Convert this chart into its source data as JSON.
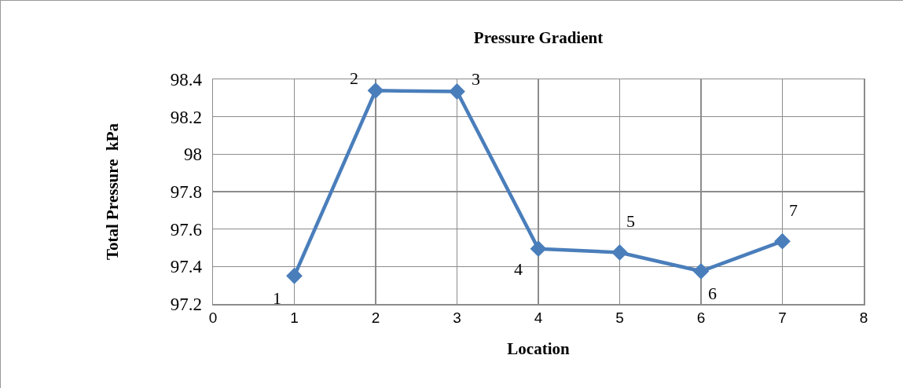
{
  "chart_data": {
    "type": "line",
    "title": "Pressure Gradient",
    "xlabel": "Location",
    "ylabel": "Total Pressure  kPa",
    "x": [
      1,
      2,
      3,
      4,
      5,
      6,
      7
    ],
    "series": [
      {
        "color": "#4a7ebb",
        "values": [
          97.35,
          98.34,
          98.335,
          97.495,
          97.475,
          97.375,
          97.535
        ]
      }
    ],
    "xlim": [
      0,
      8
    ],
    "xticks": [
      0,
      1,
      2,
      3,
      4,
      5,
      6,
      7,
      8
    ],
    "ylim": [
      97.2,
      98.4
    ],
    "yticks": [
      97.2,
      97.4,
      97.6,
      97.8,
      98,
      98.2,
      98.4
    ],
    "grid": true,
    "marker": "diamond",
    "line_style": "solid",
    "annotations": [
      {
        "text": "1",
        "x": 1,
        "y": 97.35
      },
      {
        "text": "2",
        "x": 2,
        "y": 98.34
      },
      {
        "text": "3",
        "x": 3,
        "y": 98.335
      },
      {
        "text": "4",
        "x": 4,
        "y": 97.495
      },
      {
        "text": "5",
        "x": 5,
        "y": 97.475
      },
      {
        "text": "6",
        "x": 6,
        "y": 97.375
      },
      {
        "text": "7",
        "x": 7,
        "y": 97.535
      }
    ]
  }
}
